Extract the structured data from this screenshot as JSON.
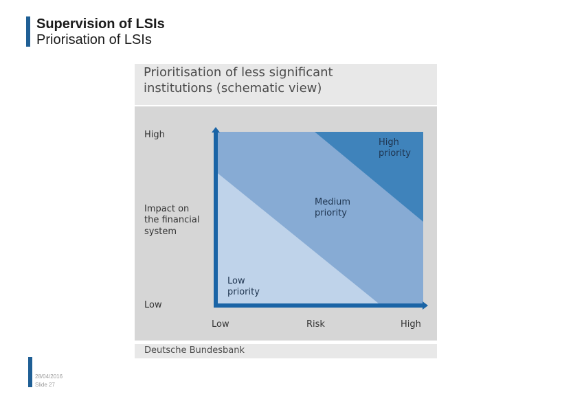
{
  "slide": {
    "title": "Supervision of LSIs",
    "subtitle": "Priorisation of LSIs",
    "date": "28/04/2016",
    "slide_number": "Slide 27"
  },
  "figure": {
    "heading_line1": "Prioritisation of less significant",
    "heading_line2": "institutions (schematic view)",
    "source": "Deutsche Bundesbank",
    "y_axis": {
      "high": "High",
      "label_line1": "Impact on",
      "label_line2": "the financial",
      "label_line3": "system",
      "low": "Low"
    },
    "x_axis": {
      "low": "Low",
      "label": "Risk",
      "high": "High"
    },
    "zones": {
      "low": {
        "line1": "Low",
        "line2": "priority",
        "color": "#bfd3ea"
      },
      "medium": {
        "line1": "Medium",
        "line2": "priority",
        "color": "#87abd4"
      },
      "high": {
        "line1": "High",
        "line2": "priority",
        "color": "#3f83bb"
      }
    },
    "axis_color": "#1a64a6"
  }
}
